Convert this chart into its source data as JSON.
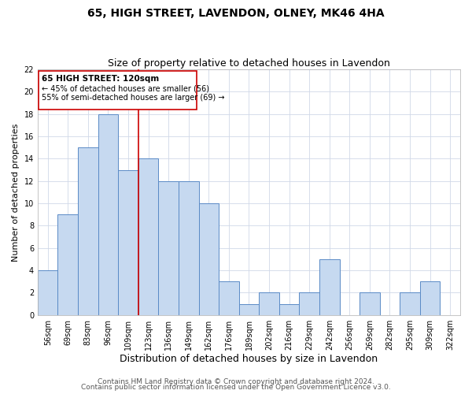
{
  "title": "65, HIGH STREET, LAVENDON, OLNEY, MK46 4HA",
  "subtitle": "Size of property relative to detached houses in Lavendon",
  "xlabel": "Distribution of detached houses by size in Lavendon",
  "ylabel": "Number of detached properties",
  "bin_labels": [
    "56sqm",
    "69sqm",
    "83sqm",
    "96sqm",
    "109sqm",
    "123sqm",
    "136sqm",
    "149sqm",
    "162sqm",
    "176sqm",
    "189sqm",
    "202sqm",
    "216sqm",
    "229sqm",
    "242sqm",
    "256sqm",
    "269sqm",
    "282sqm",
    "295sqm",
    "309sqm",
    "322sqm"
  ],
  "bar_heights": [
    4,
    9,
    15,
    18,
    13,
    14,
    12,
    12,
    10,
    3,
    1,
    2,
    1,
    2,
    5,
    0,
    2,
    0,
    2,
    3,
    0
  ],
  "bar_color": "#c6d9f0",
  "bar_edge_color": "#5a8ac6",
  "highlight_line_color": "#cc0000",
  "annotation_title": "65 HIGH STREET: 120sqm",
  "annotation_line1": "← 45% of detached houses are smaller (56)",
  "annotation_line2": "55% of semi-detached houses are larger (69) →",
  "annotation_box_color": "#ffffff",
  "annotation_box_edge": "#cc0000",
  "ylim": [
    0,
    22
  ],
  "yticks": [
    0,
    2,
    4,
    6,
    8,
    10,
    12,
    14,
    16,
    18,
    20,
    22
  ],
  "footer1": "Contains HM Land Registry data © Crown copyright and database right 2024.",
  "footer2": "Contains public sector information licensed under the Open Government Licence v3.0.",
  "title_fontsize": 10,
  "subtitle_fontsize": 9,
  "xlabel_fontsize": 9,
  "ylabel_fontsize": 8,
  "tick_fontsize": 7,
  "footer_fontsize": 6.5
}
